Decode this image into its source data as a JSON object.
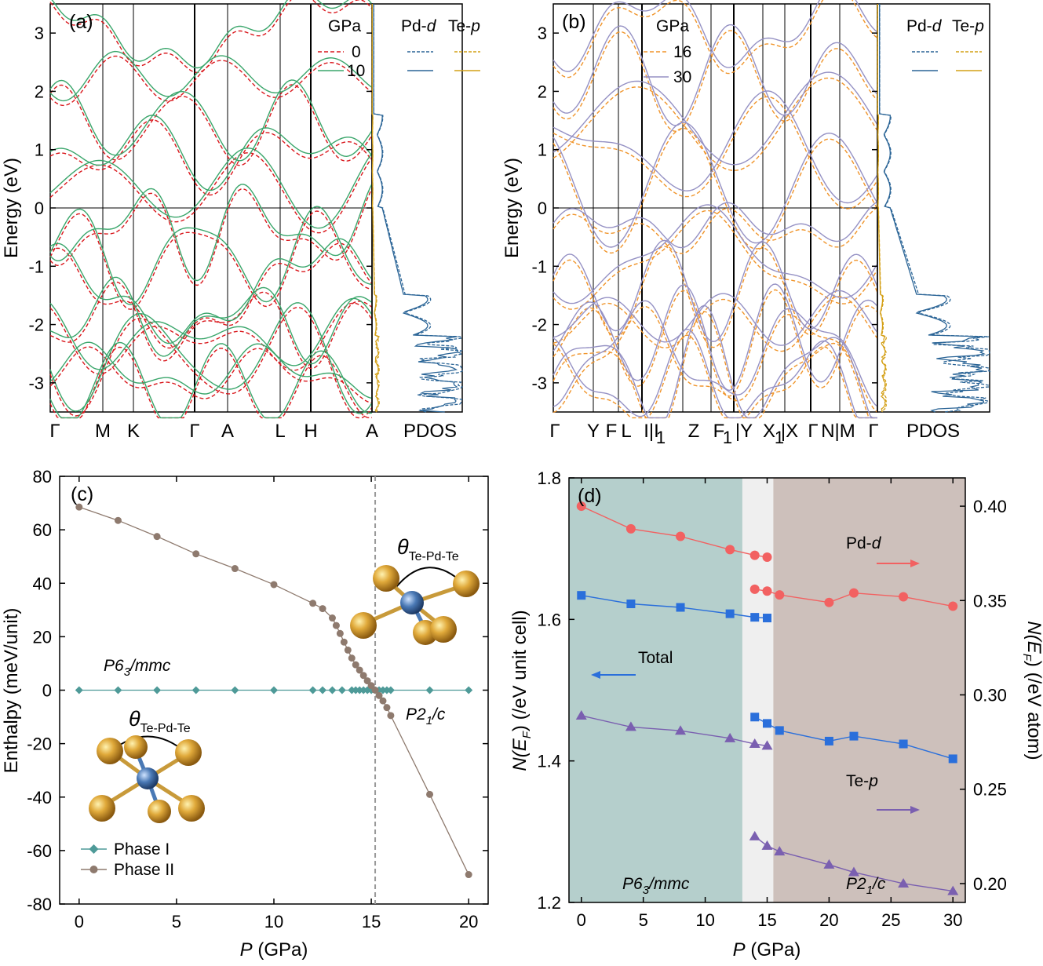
{
  "colors": {
    "gpa0": "#d9171c",
    "gpa10": "#3aa66b",
    "pdd": "#2a6496",
    "tep": "#d4a017",
    "gpa16": "#f0942a",
    "gpa30": "#9591c4",
    "phase1": "#4e9a98",
    "phase2": "#8e7a6e",
    "pdd_dots": "#f26161",
    "total": "#2a6fdb",
    "tep_dots": "#7a5fb0",
    "shade_hex": "#b5cfcc",
    "shade_mid": "#efefef",
    "shade_mono": "#cdc0bb"
  },
  "panel_a": {
    "label": "(a)",
    "ylabel": "Energy (eV)",
    "yticks": [
      "-3",
      "-2",
      "-1",
      "0",
      "1",
      "2",
      "3"
    ],
    "kpoints": [
      "Γ",
      "M",
      "K",
      "Γ",
      "A",
      "L",
      "H",
      "A"
    ],
    "pdos_label": "PDOS",
    "legend_gpa_title": "GPa",
    "legend_gpa": [
      "0",
      "10"
    ],
    "legend_pdos_pd": "Pd-",
    "legend_pdos_pd_italic": "d",
    "legend_pdos_te": "Te-",
    "legend_pdos_te_italic": "p"
  },
  "panel_b": {
    "label": "(b)",
    "ylabel": "Energy (eV)",
    "yticks": [
      "-3",
      "-2",
      "-1",
      "0",
      "1",
      "2",
      "3"
    ],
    "kpoints": [
      "Γ",
      "Y",
      "F",
      "L",
      "I|I",
      "Z",
      "F",
      "|Y",
      "X",
      "|X",
      "Γ",
      "N|M",
      "Γ"
    ],
    "kpoint_subs": [
      "1",
      "1",
      "1"
    ],
    "pdos_label": "PDOS",
    "legend_gpa_title": "GPa",
    "legend_gpa": [
      "16",
      "30"
    ],
    "legend_pdos_pd": "Pd-",
    "legend_pdos_pd_italic": "d",
    "legend_pdos_te": "Te-",
    "legend_pdos_te_italic": "p"
  },
  "panel_c": {
    "label": "(c)",
    "ylabel": "Enthalpy (meV/unit)",
    "xlabel_italic": "P",
    "xlabel": " (GPa)",
    "xticks": [
      "0",
      "5",
      "10",
      "15",
      "20"
    ],
    "yticks": [
      "-80",
      "-60",
      "-40",
      "-20",
      "0",
      "20",
      "40",
      "60",
      "80"
    ],
    "phase_label_1": "P6",
    "phase_label_1_sub": "3",
    "phase_label_1_rest": "/mmc",
    "phase_label_2": "P2",
    "phase_label_2_sub": "1",
    "phase_label_2_rest": "/c",
    "theta": "θ",
    "theta_sub": "Te-Pd-Te",
    "legend": [
      "Phase I",
      "Phase II"
    ]
  },
  "panel_d": {
    "label": "(d)",
    "ylabel_left": "N(E",
    "ylabel_left_sub": "F",
    "ylabel_left_rest": ") (/eV unit cell)",
    "ylabel_right": "N(E",
    "ylabel_right_sub": "F",
    "ylabel_right_rest": ") (/eV atom)",
    "xlabel_italic": "P",
    "xlabel": " (GPa)",
    "xticks": [
      "0",
      "5",
      "10",
      "15",
      "20",
      "25",
      "30"
    ],
    "yticks_left": [
      "1.2",
      "1.4",
      "1.6",
      "1.8"
    ],
    "yticks_right": [
      "0.20",
      "0.25",
      "0.30",
      "0.35",
      "0.40"
    ],
    "labels": {
      "pdd": "Pd-",
      "pdd_italic": "d",
      "total": "Total",
      "tep": "Te-",
      "tep_italic": "p"
    },
    "phase_label_1": "P6",
    "phase_label_1_sub": "3",
    "phase_label_1_rest": "/mmc",
    "phase_label_2": "P2",
    "phase_label_2_sub": "1",
    "phase_label_2_rest": "/c"
  },
  "chart_data": [
    {
      "type": "line",
      "title": "",
      "panel": "(c)",
      "xlabel": "P (GPa)",
      "ylabel": "Enthalpy (meV/unit)",
      "xlim": [
        -1,
        21
      ],
      "ylim": [
        -80,
        80
      ],
      "transition_P": 15.2,
      "series": [
        {
          "name": "Phase I",
          "x": [
            0,
            2,
            4,
            6,
            8,
            10,
            12,
            12.5,
            13,
            13.5,
            14,
            14.2,
            14.4,
            14.6,
            14.8,
            15,
            15.2,
            15.4,
            15.6,
            15.8,
            16,
            18,
            20
          ],
          "y": [
            0,
            0,
            0,
            0,
            0,
            0,
            0,
            0,
            0,
            0,
            0,
            0,
            0,
            0,
            0,
            0,
            0,
            0,
            0,
            0,
            0,
            0,
            0
          ]
        },
        {
          "name": "Phase II",
          "x": [
            0,
            2,
            4,
            6,
            8,
            10,
            12,
            12.5,
            13,
            13.2,
            13.4,
            13.6,
            13.8,
            14,
            14.2,
            14.4,
            14.6,
            14.8,
            15,
            15.2,
            15.4,
            15.6,
            15.8,
            16,
            18,
            20
          ],
          "y": [
            68.5,
            63.5,
            57.5,
            51,
            45.5,
            39.5,
            32.5,
            30.5,
            27,
            24.2,
            21.2,
            18,
            15,
            12,
            9.5,
            7.5,
            5.5,
            3.5,
            1.7,
            0,
            -2,
            -4,
            -6.5,
            -9.5,
            -39,
            -69
          ]
        }
      ]
    },
    {
      "type": "line",
      "title": "",
      "panel": "(d)",
      "xlabel": "P (GPa)",
      "ylabel": "N(EF) (/eV unit cell)",
      "ylabel_right": "N(EF) (/eV atom)",
      "xlim": [
        -1,
        31
      ],
      "ylim": [
        1.2,
        1.8
      ],
      "ylim_right": [
        0.19,
        0.415
      ],
      "regions": [
        {
          "name": "P63/mmc",
          "from": -1,
          "to": 13
        },
        {
          "name": "",
          "from": 13,
          "to": 15.5
        },
        {
          "name": "P21/c",
          "from": 15.5,
          "to": 31
        }
      ],
      "series": [
        {
          "name": "Pd-d",
          "axis": "right",
          "marker": "circle",
          "segments": [
            {
              "x": [
                0,
                4,
                8,
                12,
                14,
                15
              ],
              "y": [
                0.4,
                0.388,
                0.384,
                0.377,
                0.374,
                0.373
              ]
            },
            {
              "x": [
                14,
                15,
                16,
                20,
                22,
                26,
                30
              ],
              "y": [
                0.356,
                0.355,
                0.353,
                0.349,
                0.354,
                0.352,
                0.347
              ]
            }
          ]
        },
        {
          "name": "Total",
          "axis": "left",
          "marker": "square",
          "segments": [
            {
              "x": [
                0,
                4,
                8,
                12,
                14,
                15
              ],
              "y": [
                1.634,
                1.622,
                1.617,
                1.608,
                1.603,
                1.602
              ]
            },
            {
              "x": [
                14,
                15,
                16,
                20,
                22,
                26,
                30
              ],
              "y": [
                1.462,
                1.453,
                1.443,
                1.428,
                1.435,
                1.424,
                1.403
              ]
            }
          ]
        },
        {
          "name": "Te-p",
          "axis": "right",
          "marker": "triangle",
          "segments": [
            {
              "x": [
                0,
                4,
                8,
                12,
                14,
                15
              ],
              "y": [
                0.289,
                0.283,
                0.281,
                0.277,
                0.274,
                0.273
              ]
            },
            {
              "x": [
                14,
                15,
                16,
                20,
                22,
                26,
                30
              ],
              "y": [
                0.225,
                0.22,
                0.217,
                0.21,
                0.206,
                0.2,
                0.196
              ]
            }
          ]
        }
      ]
    },
    {
      "type": "line",
      "title": "",
      "panel": "(a)",
      "ylabel": "Energy (eV)",
      "ylim": [
        -3.5,
        3.5
      ],
      "series": [
        {
          "name": "0"
        },
        {
          "name": "10"
        }
      ]
    },
    {
      "type": "line",
      "title": "",
      "panel": "(b)",
      "ylabel": "Energy (eV)",
      "ylim": [
        -3.5,
        3.5
      ],
      "series": [
        {
          "name": "16"
        },
        {
          "name": "30"
        }
      ]
    }
  ]
}
